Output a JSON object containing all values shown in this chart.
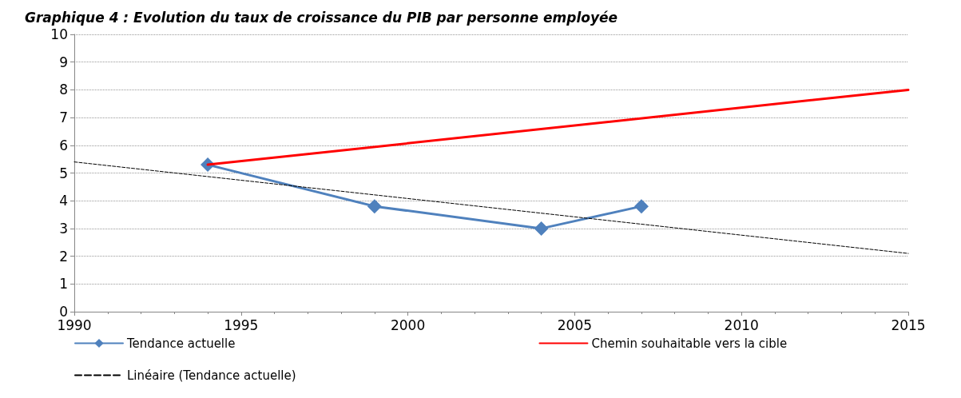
{
  "chart_data": {
    "type": "line",
    "title": "Graphique 4 : Evolution du taux de croissance du PIB par personne employée",
    "xlim": [
      1990,
      2015
    ],
    "xticks": [
      1990,
      1995,
      2000,
      2005,
      2010,
      2015
    ],
    "ylim": [
      0,
      10
    ],
    "yticks": [
      0,
      1,
      2,
      3,
      4,
      5,
      6,
      7,
      8,
      9,
      10
    ],
    "grid": "y",
    "legend": "bottom",
    "series": [
      {
        "name": "Tendance actuelle",
        "color": "#4f81bd",
        "marker": "diamond",
        "line_style": "solid",
        "x": [
          1994,
          1999,
          2004,
          2007
        ],
        "values": [
          5.3,
          3.8,
          3.0,
          3.8
        ]
      },
      {
        "name": "Chemin souhaitable vers la cible",
        "color": "#ff0000",
        "marker": "none",
        "line_style": "solid",
        "x": [
          1994,
          2015
        ],
        "values": [
          5.3,
          8.0
        ]
      },
      {
        "name": "Linéaire (Tendance actuelle)",
        "color": "#000000",
        "marker": "none",
        "line_style": "dashed",
        "x": [
          1990,
          2015
        ],
        "values": [
          5.4,
          2.1
        ]
      }
    ]
  }
}
